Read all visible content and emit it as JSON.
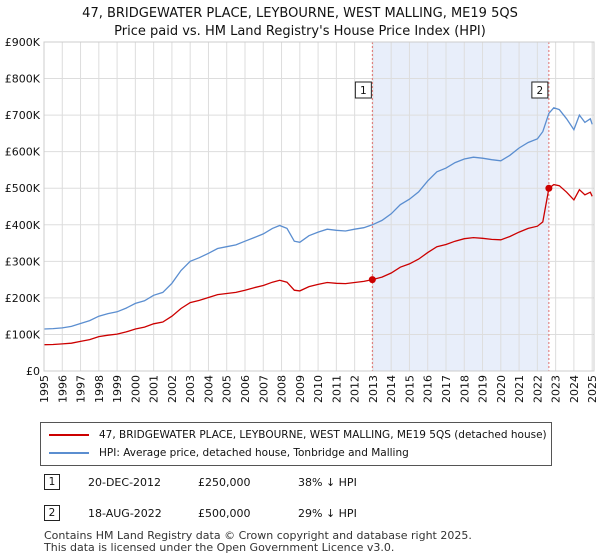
{
  "title_line1": "47, BRIDGEWATER PLACE, LEYBOURNE, WEST MALLING, ME19 5QS",
  "title_line2": "Price paid vs. HM Land Registry's House Price Index (HPI)",
  "colors": {
    "property": "#cc0000",
    "hpi": "#5b8ed0",
    "shade": "#e8eefa",
    "grid": "#dddddd",
    "vline": "#e07070"
  },
  "chart_data": {
    "type": "line",
    "title": "Price paid vs. HM Land Registry's House Price Index (HPI)",
    "xlabel": "",
    "ylabel": "",
    "xlim": [
      1995,
      2025.1
    ],
    "ylim": [
      0,
      900000
    ],
    "y_ticks": [
      {
        "value": 0,
        "label": "£0"
      },
      {
        "value": 100000,
        "label": "£100K"
      },
      {
        "value": 200000,
        "label": "£200K"
      },
      {
        "value": 300000,
        "label": "£300K"
      },
      {
        "value": 400000,
        "label": "£400K"
      },
      {
        "value": 500000,
        "label": "£500K"
      },
      {
        "value": 600000,
        "label": "£600K"
      },
      {
        "value": 700000,
        "label": "£700K"
      },
      {
        "value": 800000,
        "label": "£800K"
      },
      {
        "value": 900000,
        "label": "£900K"
      }
    ],
    "x_ticks": [
      "1995",
      "1996",
      "1997",
      "1998",
      "1999",
      "2000",
      "2001",
      "2002",
      "2003",
      "2004",
      "2005",
      "2006",
      "2007",
      "2008",
      "2009",
      "2010",
      "2011",
      "2012",
      "2013",
      "2014",
      "2015",
      "2016",
      "2017",
      "2018",
      "2019",
      "2020",
      "2021",
      "2022",
      "2023",
      "2024",
      "2025"
    ],
    "shaded_range": [
      2012.97,
      2022.63
    ],
    "series": [
      {
        "name": "HPI: Average price, detached house, Tonbridge and Malling",
        "x": [
          1995,
          1995.5,
          1996,
          1996.5,
          1997,
          1997.5,
          1998,
          1998.5,
          1999,
          1999.5,
          2000,
          2000.5,
          2001,
          2001.5,
          2002,
          2002.5,
          2003,
          2003.5,
          2004,
          2004.5,
          2005,
          2005.5,
          2006,
          2006.5,
          2007,
          2007.5,
          2007.9,
          2008.3,
          2008.7,
          2009,
          2009.5,
          2010,
          2010.5,
          2011,
          2011.5,
          2012,
          2012.5,
          2012.97,
          2013.5,
          2014,
          2014.5,
          2015,
          2015.5,
          2016,
          2016.5,
          2017,
          2017.5,
          2018,
          2018.5,
          2019,
          2019.5,
          2020,
          2020.5,
          2021,
          2021.5,
          2022,
          2022.3,
          2022.63,
          2022.9,
          2023.2,
          2023.6,
          2024,
          2024.3,
          2024.6,
          2024.9,
          2025.0
        ],
        "y": [
          115000,
          116000,
          118000,
          122000,
          130000,
          138000,
          150000,
          157000,
          162000,
          172000,
          185000,
          192000,
          207000,
          215000,
          240000,
          275000,
          300000,
          310000,
          322000,
          335000,
          340000,
          345000,
          355000,
          365000,
          375000,
          390000,
          398000,
          390000,
          355000,
          352000,
          370000,
          380000,
          388000,
          385000,
          383000,
          388000,
          392000,
          400000,
          412000,
          430000,
          455000,
          470000,
          490000,
          520000,
          545000,
          555000,
          570000,
          580000,
          585000,
          582000,
          578000,
          575000,
          590000,
          610000,
          625000,
          635000,
          655000,
          705000,
          720000,
          715000,
          690000,
          660000,
          700000,
          680000,
          690000,
          675000
        ]
      },
      {
        "name": "47, BRIDGEWATER PLACE, LEYBOURNE, WEST MALLING, ME19 5QS (detached house)",
        "x": [
          1995,
          1995.5,
          1996,
          1996.5,
          1997,
          1997.5,
          1998,
          1998.5,
          1999,
          1999.5,
          2000,
          2000.5,
          2001,
          2001.5,
          2002,
          2002.5,
          2003,
          2003.5,
          2004,
          2004.5,
          2005,
          2005.5,
          2006,
          2006.5,
          2007,
          2007.5,
          2007.9,
          2008.3,
          2008.7,
          2009,
          2009.5,
          2010,
          2010.5,
          2011,
          2011.5,
          2012,
          2012.5,
          2012.97,
          2013.5,
          2014,
          2014.5,
          2015,
          2015.5,
          2016,
          2016.5,
          2017,
          2017.5,
          2018,
          2018.5,
          2019,
          2019.5,
          2020,
          2020.5,
          2021,
          2021.5,
          2022,
          2022.3,
          2022.63,
          2022.9,
          2023.2,
          2023.6,
          2024,
          2024.3,
          2024.6,
          2024.9,
          2025.0
        ],
        "y": [
          72000,
          72500,
          74000,
          76000,
          81000,
          86000,
          94000,
          98000,
          101000,
          107000,
          115000,
          120000,
          129000,
          134000,
          150000,
          171000,
          187000,
          193000,
          201000,
          209000,
          212000,
          215000,
          221000,
          228000,
          234000,
          243000,
          248000,
          243000,
          221000,
          219000,
          231000,
          237000,
          242000,
          240000,
          239000,
          242000,
          245000,
          250000,
          257000,
          268000,
          284000,
          293000,
          306000,
          324000,
          340000,
          346000,
          355000,
          362000,
          365000,
          363000,
          360000,
          359000,
          368000,
          380000,
          390000,
          396000,
          408000,
          500000,
          510000,
          507000,
          489000,
          468000,
          496000,
          482000,
          489000,
          478000
        ]
      }
    ],
    "annotations": [
      {
        "label": "1",
        "x": 2012.97,
        "y": 250000
      },
      {
        "label": "2",
        "x": 2022.63,
        "y": 500000
      }
    ]
  },
  "legend": {
    "property": "47, BRIDGEWATER PLACE, LEYBOURNE, WEST MALLING, ME19 5QS (detached house)",
    "hpi": "HPI: Average price, detached house, Tonbridge and Malling"
  },
  "sales": [
    {
      "num": "1",
      "date": "20-DEC-2012",
      "price": "£250,000",
      "pct": "38% ↓ HPI"
    },
    {
      "num": "2",
      "date": "18-AUG-2022",
      "price": "£500,000",
      "pct": "29% ↓ HPI"
    }
  ],
  "footer": {
    "line1": "Contains HM Land Registry data © Crown copyright and database right 2025.",
    "line2": "This data is licensed under the Open Government Licence v3.0."
  }
}
